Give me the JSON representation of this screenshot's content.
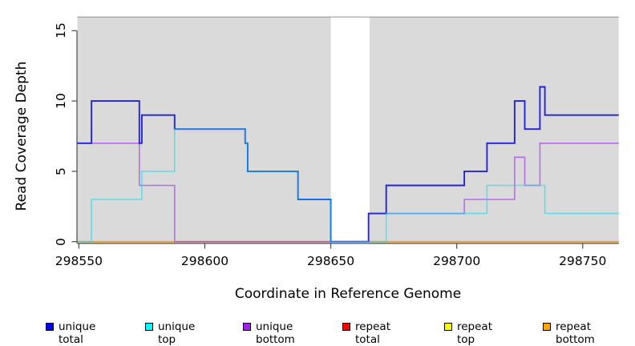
{
  "figure": {
    "background": "#ffffff",
    "panel_background": "#dadada",
    "gap_fill": "#ffffff",
    "panel_top_border_color": "#8f8f8f",
    "axis_color": "#4a4a4a",
    "text_color": "#000000"
  },
  "chart_data": {
    "type": "line",
    "step_mode": "step-after",
    "title": "",
    "xlabel": "Coordinate in Reference Genome",
    "ylabel": "Read Coverage Depth",
    "xlim": [
      298549.4,
      298764.3
    ],
    "ylim": [
      0,
      16
    ],
    "x_ticks": [
      298550,
      298600,
      298650,
      298700,
      298750
    ],
    "x_tick_labels": [
      "298550",
      "298600",
      "298650",
      "298700",
      "298750"
    ],
    "y_ticks": [
      0,
      5,
      10,
      15
    ],
    "y_tick_labels": [
      "0",
      "5",
      "10",
      "15"
    ],
    "grid": false,
    "legend_position": "bottom",
    "gap_region": {
      "x_start": 298650,
      "x_end": 298665.4
    },
    "series": [
      {
        "name": "repeat total",
        "line_color": "#ee0000",
        "line_opacity": 1,
        "line_width": 1.5,
        "points": [
          [
            298549.4,
            0
          ],
          [
            298764.3,
            0
          ]
        ]
      },
      {
        "name": "repeat top",
        "line_color": "#f0f000",
        "line_opacity": 1,
        "line_width": 1.5,
        "points": [
          [
            298549.4,
            0
          ],
          [
            298764.3,
            0
          ]
        ]
      },
      {
        "name": "repeat bottom",
        "line_color": "#ff9c00",
        "line_opacity": 1,
        "line_width": 1.6,
        "points": [
          [
            298549.4,
            0
          ],
          [
            298764.3,
            0
          ]
        ]
      },
      {
        "name": "unique bottom",
        "line_color": "#a02cf0",
        "line_opacity": 0.62,
        "line_width": 1.6,
        "points": [
          [
            298549.4,
            7
          ],
          [
            298574,
            4
          ],
          [
            298588,
            0
          ],
          [
            298665,
            2
          ],
          [
            298703,
            3
          ],
          [
            298723,
            6
          ],
          [
            298727,
            4
          ],
          [
            298733,
            7
          ],
          [
            298764.3,
            7
          ]
        ]
      },
      {
        "name": "unique total",
        "line_color": "#2323de",
        "line_opacity": 1,
        "line_width": 1.9,
        "points": [
          [
            298549.4,
            7
          ],
          [
            298555,
            10
          ],
          [
            298574,
            7
          ],
          [
            298575,
            9
          ],
          [
            298588,
            8
          ],
          [
            298616,
            7
          ],
          [
            298617,
            5
          ],
          [
            298637,
            3
          ],
          [
            298650,
            0
          ],
          [
            298665,
            2
          ],
          [
            298672,
            4
          ],
          [
            298703,
            5
          ],
          [
            298712,
            7
          ],
          [
            298723,
            10
          ],
          [
            298727,
            8
          ],
          [
            298733,
            11
          ],
          [
            298735,
            9
          ],
          [
            298764.3,
            9
          ]
        ]
      },
      {
        "name": "unique top",
        "line_color": "#00e0f0",
        "line_opacity": 0.55,
        "line_width": 1.6,
        "points": [
          [
            298549.4,
            0
          ],
          [
            298555,
            3
          ],
          [
            298575,
            5
          ],
          [
            298588,
            8
          ],
          [
            298616,
            7
          ],
          [
            298617,
            5
          ],
          [
            298637,
            3
          ],
          [
            298650,
            0
          ],
          [
            298672,
            2
          ],
          [
            298712,
            4
          ],
          [
            298735,
            2
          ],
          [
            298764.3,
            2
          ]
        ]
      }
    ]
  },
  "legend": {
    "items": [
      {
        "label": "unique total",
        "color": "#0000ee"
      },
      {
        "label": "unique top",
        "color": "#00ffff"
      },
      {
        "label": "unique bottom",
        "color": "#a020f0"
      },
      {
        "label": "repeat total",
        "color": "#ff0000"
      },
      {
        "label": "repeat top",
        "color": "#ffff00"
      },
      {
        "label": "repeat bottom",
        "color": "#ffa500"
      }
    ]
  }
}
